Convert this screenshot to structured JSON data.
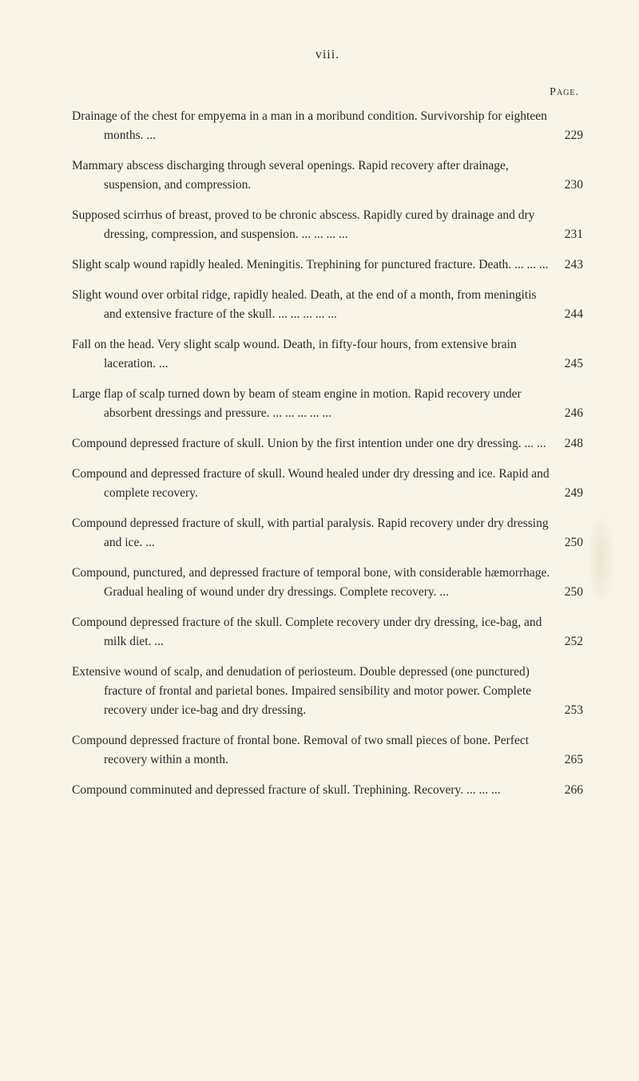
{
  "page_roman": "viii.",
  "page_label": "Page.",
  "background_color": "#f8f4e8",
  "text_color": "#2a2a2a",
  "entries": [
    {
      "text": "Drainage of the chest for empyema in a man in a moribund condition. Survivorship for eighteen months. ...",
      "page": "229"
    },
    {
      "text": "Mammary abscess discharging through several openings. Rapid recovery after drainage, suspension, and compression.",
      "page": "230"
    },
    {
      "text": "Supposed scirrhus of breast, proved to be chronic abscess. Rapidly cured by drainage and dry dressing, compression, and suspension. ... ... ... ...",
      "page": "231"
    },
    {
      "text": "Slight scalp wound rapidly healed. Meningitis. Trephining for punctured fracture. Death. ... ... ...",
      "page": "243"
    },
    {
      "text": "Slight wound over orbital ridge, rapidly healed. Death, at the end of a month, from meningitis and extensive fracture of the skull. ... ... ... ... ...",
      "page": "244"
    },
    {
      "text": "Fall on the head. Very slight scalp wound. Death, in fifty-four hours, from extensive brain laceration. ...",
      "page": "245"
    },
    {
      "text": "Large flap of scalp turned down by beam of steam engine in motion. Rapid recovery under absorbent dressings and pressure. ... ... ... ... ...",
      "page": "246"
    },
    {
      "text": "Compound depressed fracture of skull. Union by the first intention under one dry dressing. ... ...",
      "page": "248"
    },
    {
      "text": "Compound and depressed fracture of skull. Wound healed under dry dressing and ice. Rapid and complete recovery.",
      "page": "249"
    },
    {
      "text": "Compound depressed fracture of skull, with partial paralysis. Rapid recovery under dry dressing and ice. ...",
      "page": "250"
    },
    {
      "text": "Compound, punctured, and depressed fracture of temporal bone, with considerable hæmorrhage. Gradual healing of wound under dry dressings. Complete recovery. ...",
      "page": "250"
    },
    {
      "text": "Compound depressed fracture of the skull. Complete recovery under dry dressing, ice-bag, and milk diet. ...",
      "page": "252"
    },
    {
      "text": "Extensive wound of scalp, and denudation of periosteum. Double depressed (one punctured) fracture of frontal and parietal bones. Impaired sensibility and motor power. Complete recovery under ice-bag and dry dressing.",
      "page": "253"
    },
    {
      "text": "Compound depressed fracture of frontal bone. Removal of two small pieces of bone. Perfect recovery within a month.",
      "page": "265"
    },
    {
      "text": "Compound comminuted and depressed fracture of skull. Trephining. Recovery. ... ... ...",
      "page": "266"
    }
  ]
}
